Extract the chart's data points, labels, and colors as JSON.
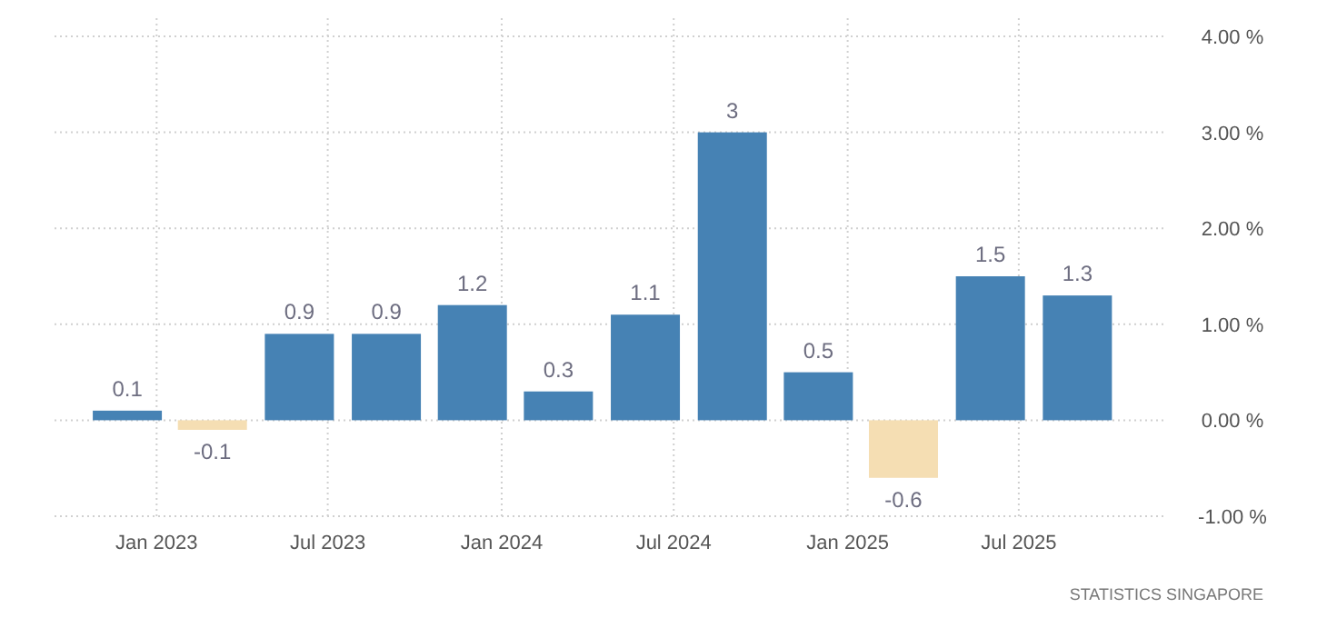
{
  "chart_data": {
    "type": "bar",
    "x": [
      "2022-12",
      "2023-03",
      "2023-06",
      "2023-09",
      "2023-12",
      "2024-03",
      "2024-06",
      "2024-09",
      "2024-12",
      "2025-03",
      "2025-06",
      "2025-09"
    ],
    "values": [
      0.1,
      -0.1,
      0.9,
      0.9,
      1.2,
      0.3,
      1.1,
      3,
      0.5,
      -0.6,
      1.5,
      1.3
    ],
    "colors": [
      "#4682b4",
      "#f5deb3",
      "#4682b4",
      "#4682b4",
      "#4682b4",
      "#4682b4",
      "#4682b4",
      "#4682b4",
      "#4682b4",
      "#f5deb3",
      "#4682b4",
      "#4682b4"
    ],
    "data_labels": true,
    "xlim": [
      "2022-09-15",
      "2025-12-01"
    ],
    "xticks": [
      {
        "value": "2023-01",
        "label": "Jan 2023"
      },
      {
        "value": "2023-07",
        "label": "Jul 2023"
      },
      {
        "value": "2024-01",
        "label": "Jan 2024"
      },
      {
        "value": "2024-07",
        "label": "Jul 2024"
      },
      {
        "value": "2025-01",
        "label": "Jan 2025"
      },
      {
        "value": "2025-07",
        "label": "Jul 2025"
      }
    ],
    "ylim": [
      -1,
      4
    ],
    "yticks": [
      {
        "value": 4,
        "label": "4.00 %"
      },
      {
        "value": 3,
        "label": "3.00 %"
      },
      {
        "value": 2,
        "label": "2.00 %"
      },
      {
        "value": 1,
        "label": "1.00 %"
      },
      {
        "value": 0,
        "label": "0.00 %"
      },
      {
        "value": -1,
        "label": "-1.00 %"
      }
    ],
    "grid": true,
    "annotations": [
      "STATISTICS SINGAPORE"
    ]
  }
}
